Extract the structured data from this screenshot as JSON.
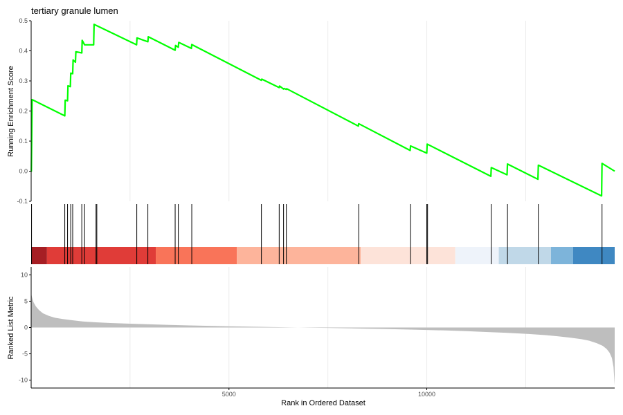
{
  "chart_data": {
    "type": "line",
    "title": "tertiary granule lumen",
    "xlabel": "Rank in Ordered Dataset",
    "xlim": [
      0,
      14750
    ],
    "x_ticks": [
      5000,
      10000
    ],
    "grid": "vertical major lines only",
    "colors": {
      "curve": "#00ff00",
      "hits": "#000000",
      "metric_fill": "#bebebe",
      "axis": "#000000",
      "grid": "#ebebeb"
    },
    "panels": [
      {
        "name": "enrichment",
        "ylabel": "Running Enrichment Score",
        "ylim": [
          -0.1,
          0.5
        ],
        "y_ticks": [
          -0.1,
          0.0,
          0.1,
          0.2,
          0.3,
          0.4,
          0.5
        ],
        "series": [
          {
            "x": [
              0,
              5,
              25,
              850,
              860,
              920,
              930,
              990,
              1000,
              1050,
              1060,
              1120,
              1130,
              1280,
              1290,
              1350,
              1360,
              1580,
              1590,
              2665,
              2675,
              2950,
              2960,
              3640,
              3650,
              3720,
              3730,
              4050,
              4060,
              5820,
              5830,
              6270,
              6280,
              6380,
              6390,
              6450,
              6460,
              8270,
              8280,
              9580,
              9590,
              10000,
              10010,
              11620,
              11630,
              12030,
              12040,
              12810,
              12820,
              14420,
              14430,
              14750
            ],
            "y": [
              0.0,
              0.0,
              0.238,
              0.184,
              0.236,
              0.234,
              0.284,
              0.281,
              0.326,
              0.324,
              0.37,
              0.362,
              0.397,
              0.393,
              0.435,
              0.42,
              0.42,
              0.42,
              0.488,
              0.42,
              0.443,
              0.43,
              0.447,
              0.402,
              0.418,
              0.412,
              0.428,
              0.408,
              0.421,
              0.302,
              0.306,
              0.278,
              0.283,
              0.273,
              0.275,
              0.272,
              0.274,
              0.15,
              0.158,
              0.069,
              0.084,
              0.06,
              0.09,
              -0.017,
              0.012,
              -0.012,
              0.024,
              -0.027,
              0.02,
              -0.082,
              0.026,
              0.0
            ]
          }
        ]
      },
      {
        "name": "hits",
        "hit_positions": [
          10,
          850,
          920,
          1000,
          1050,
          1280,
          1350,
          1640,
          1660,
          2670,
          2950,
          3640,
          3720,
          4060,
          5820,
          6270,
          6380,
          6450,
          8280,
          9590,
          10000,
          10020,
          11630,
          12040,
          12820,
          14430
        ],
        "color_bands": [
          {
            "start": 0,
            "end": 400,
            "color": "#a61e24"
          },
          {
            "start": 400,
            "end": 3150,
            "color": "#e03c38"
          },
          {
            "start": 3150,
            "end": 5200,
            "color": "#f97459"
          },
          {
            "start": 5200,
            "end": 8330,
            "color": "#fdb49b"
          },
          {
            "start": 8330,
            "end": 10720,
            "color": "#fde3d9"
          },
          {
            "start": 10720,
            "end": 11820,
            "color": "#eef3fa"
          },
          {
            "start": 11820,
            "end": 13140,
            "color": "#c0d8e8"
          },
          {
            "start": 13140,
            "end": 13700,
            "color": "#7db4da"
          },
          {
            "start": 13700,
            "end": 14750,
            "color": "#3f88c2"
          }
        ]
      },
      {
        "name": "metric",
        "ylabel": "Ranked List Metric",
        "ylim": [
          -11.5,
          11.5
        ],
        "y_ticks": [
          -10,
          -5,
          0,
          5,
          10
        ],
        "series": [
          {
            "x": [
              0,
              20,
              60,
              120,
              200,
              300,
              450,
              600,
              800,
              1000,
              1300,
              1600,
              2000,
              2500,
              3000,
              3500,
              4000,
              4500,
              5000,
              5500,
              6000,
              6500,
              7000,
              7500,
              8000,
              8500,
              9000,
              9500,
              10000,
              10500,
              11000,
              11500,
              12000,
              12500,
              13000,
              13300,
              13600,
              13900,
              14100,
              14300,
              14450,
              14550,
              14620,
              14680,
              14720,
              14750
            ],
            "y": [
              6.5,
              5.8,
              4.8,
              4.0,
              3.3,
              2.7,
              2.2,
              1.85,
              1.6,
              1.4,
              1.15,
              1.0,
              0.85,
              0.72,
              0.6,
              0.5,
              0.4,
              0.32,
              0.24,
              0.16,
              0.1,
              0.04,
              -0.02,
              -0.08,
              -0.15,
              -0.22,
              -0.3,
              -0.38,
              -0.47,
              -0.57,
              -0.7,
              -0.85,
              -1.0,
              -1.2,
              -1.45,
              -1.65,
              -1.9,
              -2.2,
              -2.5,
              -3.0,
              -3.5,
              -4.1,
              -4.8,
              -5.8,
              -7.5,
              -11.0
            ]
          }
        ]
      }
    ]
  }
}
